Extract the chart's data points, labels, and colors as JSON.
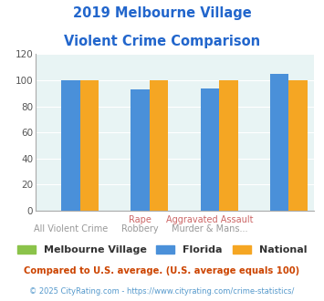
{
  "title_line1": "2019 Melbourne Village",
  "title_line2": "Violent Crime Comparison",
  "x_labels_top": [
    "",
    "Rape",
    "Aggravated Assault",
    ""
  ],
  "x_labels_bottom": [
    "All Violent Crime",
    "Robbery",
    "Murder & Mans...",
    ""
  ],
  "melbourne_village": [
    0,
    0,
    0,
    0
  ],
  "florida": [
    100,
    93,
    94,
    105
  ],
  "national": [
    100,
    100,
    100,
    100
  ],
  "color_melbourne": "#8bc34a",
  "color_florida": "#4a90d9",
  "color_national": "#f5a623",
  "ylim": [
    0,
    120
  ],
  "yticks": [
    0,
    20,
    40,
    60,
    80,
    100,
    120
  ],
  "background_color": "#e8f4f4",
  "footnote1": "Compared to U.S. average. (U.S. average equals 100)",
  "footnote2": "© 2025 CityRating.com - https://www.cityrating.com/crime-statistics/",
  "title_color": "#2266cc",
  "footnote1_color": "#cc4400",
  "footnote2_color": "#5599cc",
  "xlabel_top_color": "#cc6666",
  "xlabel_bottom_color": "#999999"
}
